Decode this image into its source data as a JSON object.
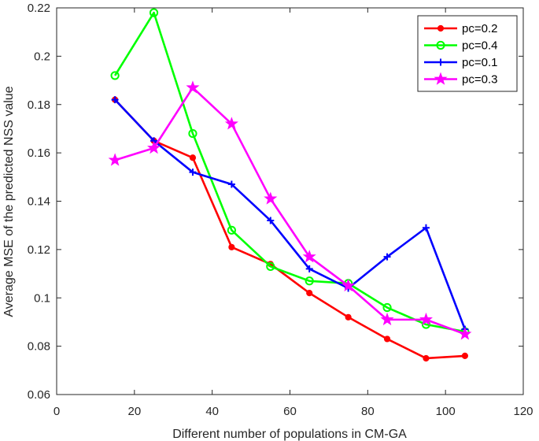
{
  "chart_data": {
    "type": "line",
    "title": "",
    "xlabel": "Different number of populations in CM-GA",
    "ylabel": "Average MSE of the predicted NSS value",
    "xlim": [
      0,
      120
    ],
    "ylim": [
      0.06,
      0.22
    ],
    "xticks": [
      0,
      20,
      40,
      60,
      80,
      100,
      120
    ],
    "yticks": [
      0.06,
      0.08,
      0.1,
      0.12,
      0.14,
      0.16,
      0.18,
      0.2,
      0.22
    ],
    "xtick_labels": [
      "0",
      "20",
      "40",
      "60",
      "80",
      "100",
      "120"
    ],
    "ytick_labels": [
      "0.06",
      "0.08",
      "0.1",
      "0.12",
      "0.14",
      "0.16",
      "0.18",
      "0.2",
      "0.22"
    ],
    "grid": false,
    "legend_position": "top-right",
    "x": [
      15,
      25,
      35,
      45,
      55,
      65,
      75,
      85,
      95,
      105
    ],
    "series": [
      {
        "name": "pc=0.2",
        "color": "#ff0000",
        "marker": "dot",
        "values": [
          0.182,
          0.165,
          0.158,
          0.121,
          0.114,
          0.102,
          0.092,
          0.083,
          0.075,
          0.076
        ]
      },
      {
        "name": "pc=0.4",
        "color": "#00ff00",
        "marker": "circle",
        "values": [
          0.192,
          0.218,
          0.168,
          0.128,
          0.113,
          0.107,
          0.106,
          0.096,
          0.089,
          0.086
        ]
      },
      {
        "name": "pc=0.1",
        "color": "#0000ff",
        "marker": "plus",
        "values": [
          0.182,
          0.165,
          0.152,
          0.147,
          0.132,
          0.112,
          0.104,
          0.117,
          0.129,
          0.087
        ]
      },
      {
        "name": "pc=0.3",
        "color": "#ff00ff",
        "marker": "star",
        "values": [
          0.157,
          0.162,
          0.187,
          0.172,
          0.141,
          0.117,
          0.105,
          0.091,
          0.091,
          0.085
        ]
      }
    ]
  }
}
